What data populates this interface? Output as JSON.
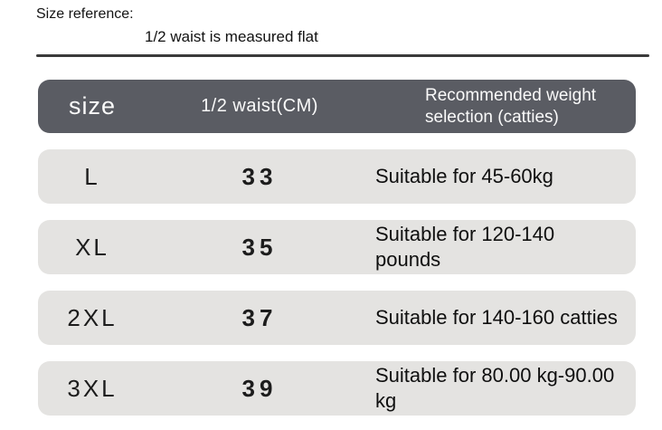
{
  "note": {
    "title": "Size reference:",
    "subtitle": "1/2 waist is measured flat"
  },
  "chart_data": {
    "type": "table",
    "title": "Size reference:",
    "subtitle": "1/2 waist is measured flat",
    "columns": [
      "size",
      "1/2 waist(CM)",
      "Recommended weight selection (catties)"
    ],
    "rows": [
      [
        "L",
        "33",
        "Suitable for 45-60kg"
      ],
      [
        "XL",
        "35",
        "Suitable for 120-140 pounds"
      ],
      [
        "2XL",
        "37",
        "Suitable for 140-160 catties"
      ],
      [
        "3XL",
        "39",
        "Suitable for 80.00 kg-90.00 kg"
      ]
    ],
    "layout_hints": {
      "header_style": "dark rounded pill",
      "row_style": "light gray rounded pills with gaps",
      "column_alignment": [
        "center",
        "center",
        "left"
      ]
    }
  },
  "colors": {
    "header_bg": "#5a5c63",
    "header_text": "#fafafa",
    "row_bg": "#e4e3e1",
    "body_text": "#161616",
    "divider": "#3b3b3b"
  }
}
